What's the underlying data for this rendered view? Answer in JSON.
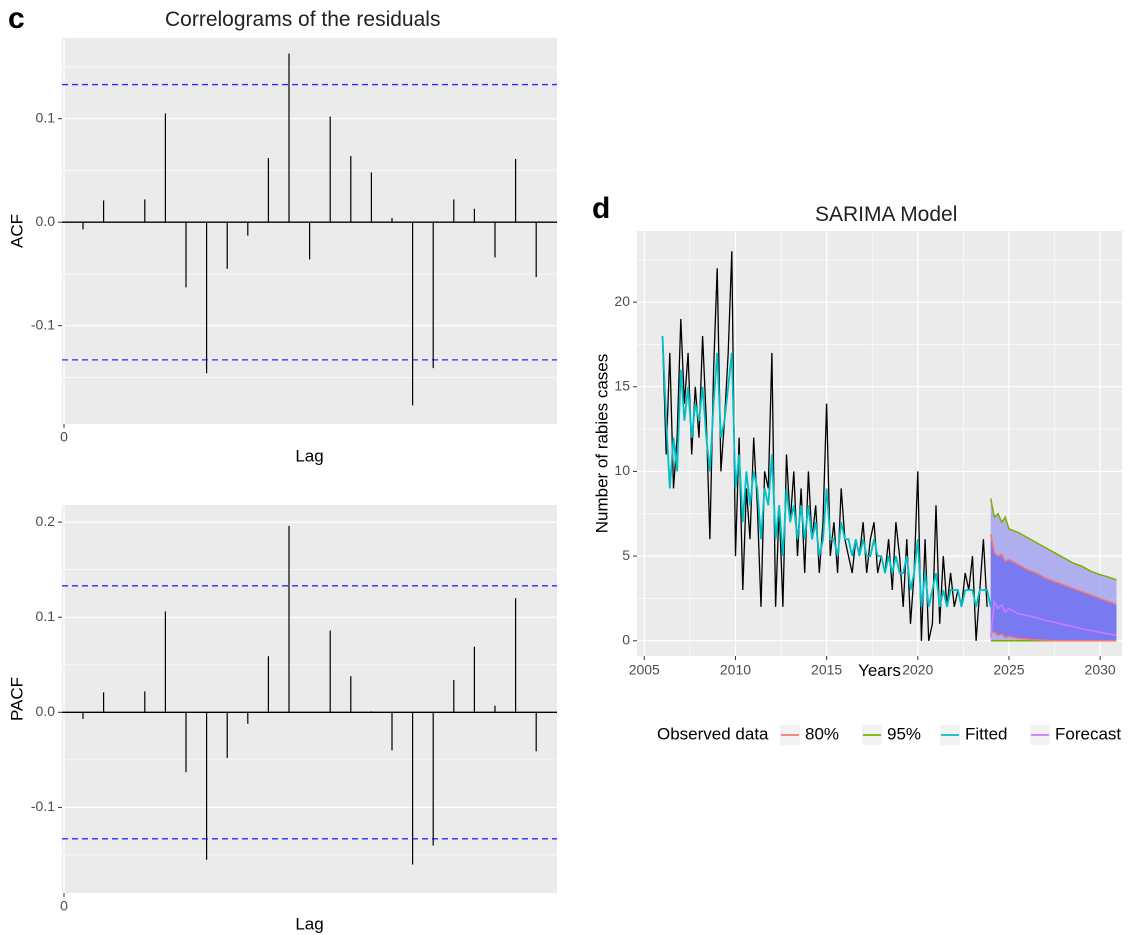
{
  "panels": {
    "c": {
      "letter": "c",
      "title": "Correlograms of the residuals"
    },
    "d": {
      "letter": "d"
    }
  },
  "chart_data": [
    {
      "type": "bar",
      "subtype": "correlogram",
      "panel": "c",
      "ylabel": "ACF",
      "xlabel": "Lag",
      "x_ticks": [
        "0"
      ],
      "y_ticks": [
        "-0.1",
        "0.0",
        "0.1"
      ],
      "ylim": [
        -0.195,
        0.178
      ],
      "confidence_bound": 0.133,
      "grid": true,
      "lags": [
        1,
        2,
        3,
        4,
        5,
        6,
        7,
        8,
        9,
        10,
        11,
        12,
        13,
        14,
        15,
        16,
        17,
        18,
        19,
        20,
        21,
        22,
        23,
        24
      ],
      "values": [
        -0.007,
        0.021,
        0.0,
        0.022,
        0.105,
        -0.063,
        -0.146,
        -0.045,
        -0.013,
        0.062,
        0.163,
        -0.036,
        0.102,
        0.064,
        0.048,
        0.004,
        -0.177,
        -0.141,
        0.022,
        0.013,
        -0.034,
        0.061,
        -0.053,
        0.0
      ]
    },
    {
      "type": "bar",
      "subtype": "correlogram",
      "panel": "c",
      "ylabel": "PACF",
      "xlabel": "Lag",
      "x_ticks": [
        "0"
      ],
      "y_ticks": [
        "-0.1",
        "0.0",
        "0.1",
        "0.2"
      ],
      "ylim": [
        -0.19,
        0.218
      ],
      "confidence_bound": 0.133,
      "grid": true,
      "lags": [
        1,
        2,
        3,
        4,
        5,
        6,
        7,
        8,
        9,
        10,
        11,
        12,
        13,
        14,
        15,
        16,
        17,
        18,
        19,
        20,
        21,
        22,
        23,
        24
      ],
      "values": [
        -0.007,
        0.021,
        0.0,
        0.022,
        0.106,
        -0.063,
        -0.155,
        -0.048,
        -0.012,
        0.059,
        0.196,
        0.0,
        0.086,
        0.038,
        0.001,
        -0.04,
        -0.16,
        -0.14,
        0.034,
        0.069,
        0.007,
        0.12,
        -0.041,
        0.0
      ]
    },
    {
      "type": "line",
      "panel": "d",
      "title": "SARIMA Model",
      "xlabel": "Years",
      "ylabel": "Number of rabies cases",
      "x_ticks": [
        "2005",
        "2010",
        "2015",
        "2020",
        "2025",
        "2030"
      ],
      "y_ticks": [
        "0",
        "5",
        "10",
        "15",
        "20"
      ],
      "xlim": [
        2004.6,
        2031.2
      ],
      "ylim": [
        -0.9,
        24.2
      ],
      "grid": true,
      "legend_position": "bottom",
      "legend": [
        {
          "label": "Observed data",
          "color": "#000000"
        },
        {
          "label": "80%",
          "color": "#F8766D"
        },
        {
          "label": "95%",
          "color": "#7CAE00"
        },
        {
          "label": "Fitted",
          "color": "#00BFC4"
        },
        {
          "label": "Forecast",
          "color": "#C77CFF"
        }
      ],
      "series": [
        {
          "name": "Observed data",
          "color": "#000000",
          "x": [
            2006.0,
            2006.2,
            2006.4,
            2006.6,
            2006.8,
            2007.0,
            2007.2,
            2007.4,
            2007.6,
            2007.8,
            2008.0,
            2008.2,
            2008.4,
            2008.6,
            2008.8,
            2009.0,
            2009.2,
            2009.4,
            2009.6,
            2009.8,
            2010.0,
            2010.2,
            2010.4,
            2010.6,
            2010.8,
            2011.0,
            2011.2,
            2011.4,
            2011.6,
            2011.8,
            2012.0,
            2012.2,
            2012.4,
            2012.6,
            2012.8,
            2013.0,
            2013.2,
            2013.4,
            2013.6,
            2013.8,
            2014.0,
            2014.2,
            2014.4,
            2014.6,
            2014.8,
            2015.0,
            2015.2,
            2015.4,
            2015.6,
            2015.8,
            2016.0,
            2016.2,
            2016.4,
            2016.6,
            2016.8,
            2017.0,
            2017.2,
            2017.4,
            2017.6,
            2017.8,
            2018.0,
            2018.2,
            2018.4,
            2018.6,
            2018.8,
            2019.0,
            2019.2,
            2019.4,
            2019.6,
            2019.8,
            2020.0,
            2020.2,
            2020.4,
            2020.6,
            2020.8,
            2021.0,
            2021.2,
            2021.4,
            2021.6,
            2021.8,
            2022.0,
            2022.2,
            2022.4,
            2022.6,
            2022.8,
            2023.0,
            2023.2,
            2023.4,
            2023.6,
            2023.8
          ],
          "values": [
            18,
            11,
            17,
            9,
            12,
            19,
            14,
            17,
            11,
            15,
            12,
            18,
            13,
            6,
            16,
            22,
            10,
            13,
            17,
            23,
            5,
            12,
            3,
            9,
            6,
            12,
            8,
            2,
            10,
            9,
            17,
            2,
            8,
            2,
            11,
            7,
            10,
            5,
            9,
            4,
            10,
            6,
            8,
            4,
            7,
            14,
            5,
            7,
            4,
            9,
            6,
            5,
            4,
            6,
            5,
            7,
            4,
            6,
            7,
            4,
            5,
            4,
            6,
            3,
            7,
            5,
            2,
            6,
            1,
            4,
            10,
            0,
            6,
            0,
            1,
            8,
            1,
            5,
            2,
            4,
            2,
            3,
            2,
            4,
            3,
            5,
            0,
            3,
            6,
            2
          ]
        },
        {
          "name": "Fitted",
          "color": "#00BFC4",
          "x": [
            2006.0,
            2006.2,
            2006.4,
            2006.6,
            2006.8,
            2007.0,
            2007.2,
            2007.4,
            2007.6,
            2007.8,
            2008.0,
            2008.2,
            2008.4,
            2008.6,
            2008.8,
            2009.0,
            2009.2,
            2009.4,
            2009.6,
            2009.8,
            2010.0,
            2010.2,
            2010.4,
            2010.6,
            2010.8,
            2011.0,
            2011.2,
            2011.4,
            2011.6,
            2011.8,
            2012.0,
            2012.2,
            2012.4,
            2012.6,
            2012.8,
            2013.0,
            2013.2,
            2013.4,
            2013.6,
            2013.8,
            2014.0,
            2014.2,
            2014.4,
            2014.6,
            2014.8,
            2015.0,
            2015.2,
            2015.4,
            2015.6,
            2015.8,
            2016.0,
            2016.2,
            2016.4,
            2016.6,
            2016.8,
            2017.0,
            2017.2,
            2017.4,
            2017.6,
            2017.8,
            2018.0,
            2018.2,
            2018.4,
            2018.6,
            2018.8,
            2019.0,
            2019.2,
            2019.4,
            2019.6,
            2019.8,
            2020.0,
            2020.2,
            2020.4,
            2020.6,
            2020.8,
            2021.0,
            2021.2,
            2021.4,
            2021.6,
            2021.8,
            2022.0,
            2022.2,
            2022.4,
            2022.6,
            2022.8,
            2023.0,
            2023.2,
            2023.4,
            2023.6,
            2023.8,
            2024.0
          ],
          "values": [
            18,
            13,
            9,
            12,
            10,
            16,
            13,
            15,
            12,
            14,
            13,
            15,
            12,
            10,
            14,
            17,
            12,
            13,
            15,
            17,
            9,
            11,
            7,
            10,
            8,
            10,
            9,
            6,
            9,
            8,
            11,
            6,
            8,
            5,
            9,
            7,
            8,
            6,
            8,
            6,
            8,
            6,
            7,
            5,
            6,
            9,
            6,
            6,
            5,
            7,
            6,
            6,
            5,
            6,
            5,
            6,
            5,
            5,
            6,
            5,
            5,
            4,
            5,
            4,
            5,
            4,
            4,
            5,
            3,
            4,
            6,
            2,
            4,
            2,
            3,
            4,
            2,
            3,
            2,
            3,
            3,
            3,
            2,
            3,
            3,
            3,
            2,
            3,
            3,
            3,
            2
          ]
        },
        {
          "name": "Forecast",
          "color": "#C77CFF",
          "x": [
            2024.0,
            2024.2,
            2024.4,
            2024.6,
            2024.8,
            2025.0,
            2025.5,
            2026.0,
            2026.5,
            2027.0,
            2027.5,
            2028.0,
            2028.5,
            2029.0,
            2029.5,
            2030.0,
            2030.5,
            2030.9
          ],
          "values": [
            0.2,
            2.3,
            1.9,
            2.1,
            1.7,
            1.9,
            1.6,
            1.5,
            1.35,
            1.2,
            1.1,
            0.95,
            0.85,
            0.7,
            0.6,
            0.5,
            0.4,
            0.33
          ]
        }
      ],
      "intervals": [
        {
          "name": "80%",
          "color": "#F8766D",
          "x": [
            2024.0,
            2024.2,
            2024.4,
            2024.6,
            2024.8,
            2025.0,
            2025.5,
            2026.0,
            2026.5,
            2027.0,
            2027.5,
            2028.0,
            2028.5,
            2029.0,
            2029.5,
            2030.0,
            2030.5,
            2030.9
          ],
          "upper": [
            6.3,
            5.2,
            5.0,
            5.1,
            4.7,
            4.8,
            4.5,
            4.2,
            4.0,
            3.7,
            3.5,
            3.3,
            3.1,
            2.9,
            2.7,
            2.5,
            2.3,
            2.15
          ],
          "lower": [
            0.5,
            0.5,
            0.3,
            0.4,
            0.2,
            0.25,
            0.15,
            0.1,
            0.05,
            0.02,
            0,
            0,
            0,
            0,
            0,
            0,
            0,
            0
          ]
        },
        {
          "name": "95%",
          "color": "#7CAE00",
          "x": [
            2024.0,
            2024.2,
            2024.4,
            2024.6,
            2024.8,
            2025.0,
            2025.5,
            2026.0,
            2026.5,
            2027.0,
            2027.5,
            2028.0,
            2028.5,
            2029.0,
            2029.5,
            2030.0,
            2030.5,
            2030.9
          ],
          "upper": [
            8.4,
            7.3,
            7.5,
            7.0,
            7.3,
            6.6,
            6.4,
            6.1,
            5.8,
            5.5,
            5.2,
            4.9,
            4.6,
            4.4,
            4.1,
            3.9,
            3.75,
            3.6
          ],
          "lower": [
            0,
            0,
            0,
            0,
            0,
            0,
            0,
            0,
            0,
            0,
            0,
            0,
            0,
            0,
            0,
            0,
            0,
            0
          ]
        }
      ]
    }
  ]
}
